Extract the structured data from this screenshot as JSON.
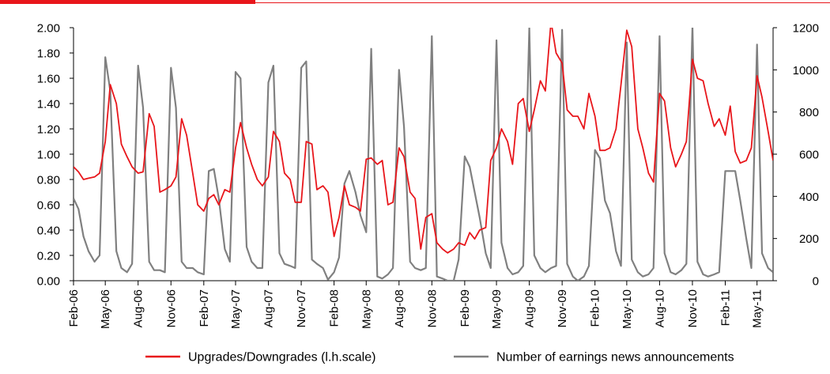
{
  "colors": {
    "red_series": "#e8161b",
    "gray_series": "#808080",
    "top_bar_red": "#e8161b",
    "axis": "#000000"
  },
  "chart_data": {
    "type": "line",
    "grid": false,
    "legend_position": "bottom",
    "x_tick_labels": [
      "Feb-06",
      "May-06",
      "Aug-06",
      "Nov-06",
      "Feb-07",
      "May-07",
      "Aug-07",
      "Nov-07",
      "Feb-08",
      "May-08",
      "Aug-08",
      "Nov-08",
      "Feb-09",
      "May-09",
      "Aug-09",
      "Nov-09",
      "Feb-10",
      "May-10",
      "Aug-10",
      "Nov-10",
      "Feb-11",
      "May-11"
    ],
    "left_axis": {
      "ylim": [
        0,
        2
      ],
      "tick_labels": [
        "0.00",
        "0.20",
        "0.40",
        "0.60",
        "0.80",
        "1.00",
        "1.20",
        "1.40",
        "1.60",
        "1.80",
        "2.00"
      ]
    },
    "right_axis": {
      "ylim": [
        0,
        1200
      ],
      "tick_labels": [
        "0",
        "200",
        "400",
        "600",
        "800",
        "1000",
        "1200"
      ]
    },
    "series": [
      {
        "name": "Upgrades/Downgrades (l.h.scale)",
        "axis": "left",
        "color": "#e8161b",
        "points": [
          [
            "2006-02-01",
            0.9
          ],
          [
            "2006-02-15",
            0.86
          ],
          [
            "2006-03-01",
            0.8
          ],
          [
            "2006-03-15",
            0.81
          ],
          [
            "2006-04-01",
            0.82
          ],
          [
            "2006-04-15",
            0.85
          ],
          [
            "2006-05-01",
            1.1
          ],
          [
            "2006-05-15",
            1.55
          ],
          [
            "2006-06-01",
            1.4
          ],
          [
            "2006-06-15",
            1.08
          ],
          [
            "2006-07-01",
            0.98
          ],
          [
            "2006-07-15",
            0.9
          ],
          [
            "2006-08-01",
            0.85
          ],
          [
            "2006-08-15",
            0.86
          ],
          [
            "2006-09-01",
            1.32
          ],
          [
            "2006-09-15",
            1.22
          ],
          [
            "2006-10-01",
            0.7
          ],
          [
            "2006-10-15",
            0.72
          ],
          [
            "2006-11-01",
            0.75
          ],
          [
            "2006-11-15",
            0.82
          ],
          [
            "2006-12-01",
            1.28
          ],
          [
            "2006-12-15",
            1.15
          ],
          [
            "2007-01-01",
            0.85
          ],
          [
            "2007-01-15",
            0.6
          ],
          [
            "2007-02-01",
            0.55
          ],
          [
            "2007-02-15",
            0.65
          ],
          [
            "2007-03-01",
            0.68
          ],
          [
            "2007-03-15",
            0.6
          ],
          [
            "2007-04-01",
            0.72
          ],
          [
            "2007-04-15",
            0.7
          ],
          [
            "2007-05-01",
            1.05
          ],
          [
            "2007-05-15",
            1.25
          ],
          [
            "2007-06-01",
            1.05
          ],
          [
            "2007-06-15",
            0.92
          ],
          [
            "2007-07-01",
            0.8
          ],
          [
            "2007-07-15",
            0.75
          ],
          [
            "2007-08-01",
            0.82
          ],
          [
            "2007-08-15",
            1.18
          ],
          [
            "2007-09-01",
            1.1
          ],
          [
            "2007-09-15",
            0.85
          ],
          [
            "2007-10-01",
            0.8
          ],
          [
            "2007-10-15",
            0.62
          ],
          [
            "2007-11-01",
            0.62
          ],
          [
            "2007-11-15",
            1.1
          ],
          [
            "2007-12-01",
            1.08
          ],
          [
            "2007-12-15",
            0.72
          ],
          [
            "2008-01-01",
            0.75
          ],
          [
            "2008-01-15",
            0.7
          ],
          [
            "2008-02-01",
            0.35
          ],
          [
            "2008-02-15",
            0.5
          ],
          [
            "2008-03-01",
            0.75
          ],
          [
            "2008-03-15",
            0.6
          ],
          [
            "2008-04-01",
            0.58
          ],
          [
            "2008-04-15",
            0.55
          ],
          [
            "2008-05-01",
            0.96
          ],
          [
            "2008-05-15",
            0.97
          ],
          [
            "2008-06-01",
            0.92
          ],
          [
            "2008-06-15",
            0.95
          ],
          [
            "2008-07-01",
            0.6
          ],
          [
            "2008-07-15",
            0.62
          ],
          [
            "2008-08-01",
            1.05
          ],
          [
            "2008-08-15",
            0.98
          ],
          [
            "2008-09-01",
            0.7
          ],
          [
            "2008-09-15",
            0.65
          ],
          [
            "2008-10-01",
            0.25
          ],
          [
            "2008-10-15",
            0.5
          ],
          [
            "2008-11-01",
            0.53
          ],
          [
            "2008-11-15",
            0.3
          ],
          [
            "2008-12-01",
            0.25
          ],
          [
            "2008-12-15",
            0.22
          ],
          [
            "2009-01-01",
            0.25
          ],
          [
            "2009-01-15",
            0.3
          ],
          [
            "2009-02-01",
            0.28
          ],
          [
            "2009-02-15",
            0.38
          ],
          [
            "2009-03-01",
            0.33
          ],
          [
            "2009-03-15",
            0.4
          ],
          [
            "2009-04-01",
            0.42
          ],
          [
            "2009-04-15",
            0.95
          ],
          [
            "2009-05-01",
            1.05
          ],
          [
            "2009-05-15",
            1.2
          ],
          [
            "2009-06-01",
            1.1
          ],
          [
            "2009-06-15",
            0.92
          ],
          [
            "2009-07-01",
            1.4
          ],
          [
            "2009-07-15",
            1.44
          ],
          [
            "2009-08-01",
            1.18
          ],
          [
            "2009-08-15",
            1.35
          ],
          [
            "2009-09-01",
            1.58
          ],
          [
            "2009-09-15",
            1.5
          ],
          [
            "2009-10-01",
            2.05
          ],
          [
            "2009-10-15",
            1.8
          ],
          [
            "2009-11-01",
            1.72
          ],
          [
            "2009-11-15",
            1.35
          ],
          [
            "2009-12-01",
            1.3
          ],
          [
            "2009-12-15",
            1.3
          ],
          [
            "2010-01-01",
            1.2
          ],
          [
            "2010-01-15",
            1.48
          ],
          [
            "2010-02-01",
            1.3
          ],
          [
            "2010-02-15",
            1.03
          ],
          [
            "2010-03-01",
            1.03
          ],
          [
            "2010-03-15",
            1.05
          ],
          [
            "2010-04-01",
            1.2
          ],
          [
            "2010-04-15",
            1.55
          ],
          [
            "2010-05-01",
            1.98
          ],
          [
            "2010-05-15",
            1.85
          ],
          [
            "2010-06-01",
            1.2
          ],
          [
            "2010-06-15",
            1.05
          ],
          [
            "2010-07-01",
            0.85
          ],
          [
            "2010-07-15",
            0.78
          ],
          [
            "2010-08-01",
            1.48
          ],
          [
            "2010-08-15",
            1.42
          ],
          [
            "2010-09-01",
            1.05
          ],
          [
            "2010-09-15",
            0.9
          ],
          [
            "2010-10-01",
            1.0
          ],
          [
            "2010-10-15",
            1.1
          ],
          [
            "2010-11-01",
            1.75
          ],
          [
            "2010-11-15",
            1.6
          ],
          [
            "2010-12-01",
            1.58
          ],
          [
            "2010-12-15",
            1.4
          ],
          [
            "2011-01-01",
            1.22
          ],
          [
            "2011-01-15",
            1.28
          ],
          [
            "2011-02-01",
            1.15
          ],
          [
            "2011-02-15",
            1.38
          ],
          [
            "2011-03-01",
            1.02
          ],
          [
            "2011-03-15",
            0.93
          ],
          [
            "2011-04-01",
            0.95
          ],
          [
            "2011-04-15",
            1.05
          ],
          [
            "2011-05-01",
            1.62
          ],
          [
            "2011-05-15",
            1.45
          ],
          [
            "2011-06-01",
            1.18
          ],
          [
            "2011-06-15",
            0.95
          ]
        ]
      },
      {
        "name": "Number of earnings news announcements",
        "axis": "right",
        "color": "#808080",
        "points": [
          [
            "2006-02-01",
            390
          ],
          [
            "2006-02-15",
            340
          ],
          [
            "2006-03-01",
            210
          ],
          [
            "2006-03-15",
            140
          ],
          [
            "2006-04-01",
            90
          ],
          [
            "2006-04-15",
            120
          ],
          [
            "2006-05-01",
            1060
          ],
          [
            "2006-05-15",
            900
          ],
          [
            "2006-06-01",
            140
          ],
          [
            "2006-06-15",
            60
          ],
          [
            "2006-07-01",
            40
          ],
          [
            "2006-07-15",
            80
          ],
          [
            "2006-08-01",
            1020
          ],
          [
            "2006-08-15",
            820
          ],
          [
            "2006-09-01",
            90
          ],
          [
            "2006-09-15",
            50
          ],
          [
            "2006-10-01",
            50
          ],
          [
            "2006-10-15",
            40
          ],
          [
            "2006-11-01",
            1010
          ],
          [
            "2006-11-15",
            820
          ],
          [
            "2006-12-01",
            90
          ],
          [
            "2006-12-15",
            60
          ],
          [
            "2007-01-01",
            60
          ],
          [
            "2007-01-15",
            40
          ],
          [
            "2007-02-01",
            30
          ],
          [
            "2007-02-15",
            520
          ],
          [
            "2007-03-01",
            530
          ],
          [
            "2007-03-15",
            390
          ],
          [
            "2007-04-01",
            150
          ],
          [
            "2007-04-15",
            90
          ],
          [
            "2007-05-01",
            990
          ],
          [
            "2007-05-15",
            960
          ],
          [
            "2007-06-01",
            160
          ],
          [
            "2007-06-15",
            90
          ],
          [
            "2007-07-01",
            60
          ],
          [
            "2007-07-15",
            60
          ],
          [
            "2007-08-01",
            940
          ],
          [
            "2007-08-15",
            1020
          ],
          [
            "2007-09-01",
            130
          ],
          [
            "2007-09-15",
            80
          ],
          [
            "2007-10-01",
            70
          ],
          [
            "2007-10-15",
            60
          ],
          [
            "2007-11-01",
            1010
          ],
          [
            "2007-11-15",
            1040
          ],
          [
            "2007-12-01",
            100
          ],
          [
            "2007-12-15",
            80
          ],
          [
            "2008-01-01",
            60
          ],
          [
            "2008-01-15",
            5
          ],
          [
            "2008-02-01",
            40
          ],
          [
            "2008-02-15",
            110
          ],
          [
            "2008-03-01",
            460
          ],
          [
            "2008-03-15",
            520
          ],
          [
            "2008-04-01",
            420
          ],
          [
            "2008-04-15",
            310
          ],
          [
            "2008-05-01",
            230
          ],
          [
            "2008-05-15",
            1100
          ],
          [
            "2008-06-01",
            20
          ],
          [
            "2008-06-15",
            10
          ],
          [
            "2008-07-01",
            30
          ],
          [
            "2008-07-15",
            60
          ],
          [
            "2008-08-01",
            1000
          ],
          [
            "2008-08-15",
            730
          ],
          [
            "2008-09-01",
            90
          ],
          [
            "2008-09-15",
            60
          ],
          [
            "2008-10-01",
            50
          ],
          [
            "2008-10-15",
            60
          ],
          [
            "2008-11-01",
            1160
          ],
          [
            "2008-11-15",
            20
          ],
          [
            "2008-12-01",
            10
          ],
          [
            "2008-12-15",
            0
          ],
          [
            "2009-01-01",
            0
          ],
          [
            "2009-01-15",
            100
          ],
          [
            "2009-02-01",
            590
          ],
          [
            "2009-02-15",
            540
          ],
          [
            "2009-03-01",
            420
          ],
          [
            "2009-03-15",
            300
          ],
          [
            "2009-04-01",
            130
          ],
          [
            "2009-04-15",
            60
          ],
          [
            "2009-05-01",
            1140
          ],
          [
            "2009-05-15",
            180
          ],
          [
            "2009-06-01",
            60
          ],
          [
            "2009-06-15",
            30
          ],
          [
            "2009-07-01",
            40
          ],
          [
            "2009-07-15",
            70
          ],
          [
            "2009-08-01",
            1200
          ],
          [
            "2009-08-15",
            120
          ],
          [
            "2009-09-01",
            60
          ],
          [
            "2009-09-15",
            40
          ],
          [
            "2009-10-01",
            60
          ],
          [
            "2009-10-15",
            70
          ],
          [
            "2009-11-01",
            1190
          ],
          [
            "2009-11-15",
            80
          ],
          [
            "2009-12-01",
            20
          ],
          [
            "2009-12-15",
            0
          ],
          [
            "2010-01-01",
            20
          ],
          [
            "2010-01-15",
            70
          ],
          [
            "2010-02-01",
            620
          ],
          [
            "2010-02-15",
            580
          ],
          [
            "2010-03-01",
            380
          ],
          [
            "2010-03-15",
            320
          ],
          [
            "2010-04-01",
            140
          ],
          [
            "2010-04-15",
            70
          ],
          [
            "2010-05-01",
            1130
          ],
          [
            "2010-05-15",
            100
          ],
          [
            "2010-06-01",
            40
          ],
          [
            "2010-06-15",
            20
          ],
          [
            "2010-07-01",
            30
          ],
          [
            "2010-07-15",
            60
          ],
          [
            "2010-08-01",
            1160
          ],
          [
            "2010-08-15",
            130
          ],
          [
            "2010-09-01",
            40
          ],
          [
            "2010-09-15",
            30
          ],
          [
            "2010-10-01",
            50
          ],
          [
            "2010-10-15",
            80
          ],
          [
            "2010-11-01",
            1210
          ],
          [
            "2010-11-15",
            90
          ],
          [
            "2010-12-01",
            30
          ],
          [
            "2010-12-15",
            20
          ],
          [
            "2011-01-01",
            30
          ],
          [
            "2011-01-15",
            40
          ],
          [
            "2011-02-01",
            520
          ],
          [
            "2011-02-15",
            520
          ],
          [
            "2011-03-01",
            520
          ],
          [
            "2011-03-15",
            380
          ],
          [
            "2011-04-01",
            200
          ],
          [
            "2011-04-15",
            60
          ],
          [
            "2011-05-01",
            1120
          ],
          [
            "2011-05-15",
            130
          ],
          [
            "2011-06-01",
            60
          ],
          [
            "2011-06-15",
            40
          ]
        ]
      }
    ]
  }
}
